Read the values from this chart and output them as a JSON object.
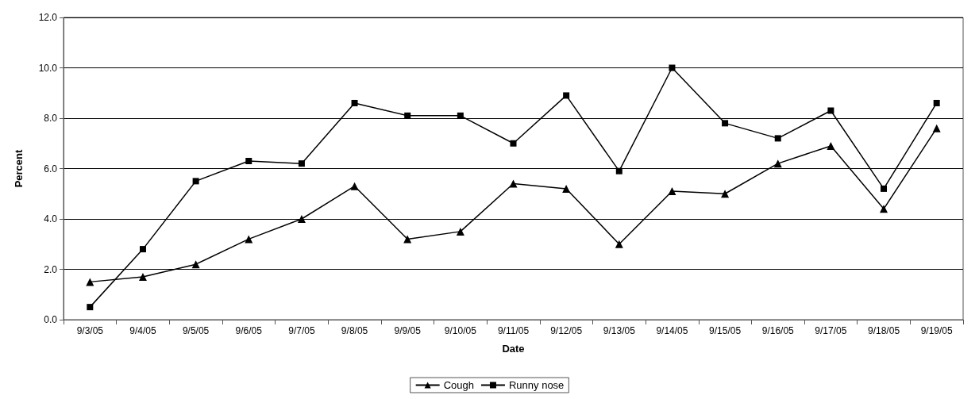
{
  "chart_data": {
    "type": "line",
    "xlabel": "Date",
    "ylabel": "Percent",
    "categories": [
      "9/3/05",
      "9/4/05",
      "9/5/05",
      "9/6/05",
      "9/7/05",
      "9/8/05",
      "9/9/05",
      "9/10/05",
      "9/11/05",
      "9/12/05",
      "9/13/05",
      "9/14/05",
      "9/15/05",
      "9/16/05",
      "9/17/05",
      "9/18/05",
      "9/19/05"
    ],
    "series": [
      {
        "name": "Cough",
        "color": "#000000",
        "marker": "triangle",
        "values": [
          1.5,
          1.7,
          2.2,
          3.2,
          4.0,
          5.3,
          3.2,
          3.5,
          5.4,
          5.2,
          3.0,
          5.1,
          5.0,
          6.2,
          6.9,
          4.4,
          7.6
        ]
      },
      {
        "name": "Runny nose",
        "color": "#000000",
        "marker": "square",
        "values": [
          0.5,
          2.8,
          5.5,
          6.3,
          6.2,
          8.6,
          8.1,
          8.1,
          7.0,
          8.9,
          5.9,
          10.0,
          7.8,
          7.2,
          8.3,
          5.2,
          8.6
        ]
      }
    ],
    "ylim": [
      0,
      12
    ],
    "yticks": [
      {
        "value": 0,
        "label": "0.0"
      },
      {
        "value": 2,
        "label": "2.0"
      },
      {
        "value": 4,
        "label": "4.0"
      },
      {
        "value": 6,
        "label": "6.0"
      },
      {
        "value": 8,
        "label": "8.0"
      },
      {
        "value": 10,
        "label": "10.0"
      },
      {
        "value": 12,
        "label": "12.0"
      }
    ],
    "grid": "y",
    "legend": "bottom",
    "line_style": "solid"
  }
}
